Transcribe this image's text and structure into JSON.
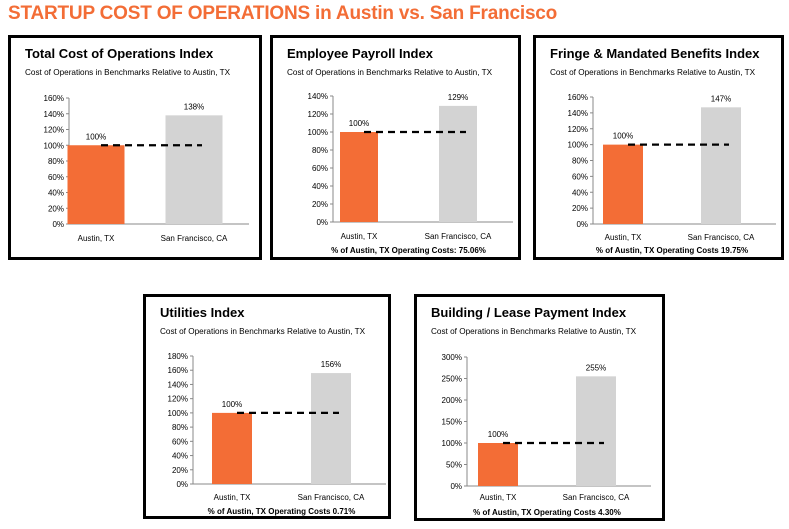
{
  "page": {
    "title": "STARTUP COST OF OPERATIONS in Austin vs. San Francisco"
  },
  "colors": {
    "title": "#f36d36",
    "austin_bar": "#f36d36",
    "sf_bar": "#d3d3d3",
    "reference_line": "#000000"
  },
  "chart_data": [
    {
      "type": "bar",
      "title": "Total Cost of Operations Index",
      "subtitle": "Cost of Operations in Benchmarks Relative to  Austin, TX",
      "categories": [
        "Austin, TX",
        "San Francisco, CA"
      ],
      "values": [
        100,
        138
      ],
      "value_labels": [
        "100%",
        "138%"
      ],
      "ylim": [
        0,
        160
      ],
      "yticks": [
        0,
        20,
        40,
        60,
        80,
        100,
        120,
        140,
        160
      ],
      "ytick_labels": [
        "0%",
        "20%",
        "40%",
        "60%",
        "80%",
        "100%",
        "120%",
        "140%",
        "160%"
      ],
      "reference_line": 100,
      "grid": false,
      "footnote": ""
    },
    {
      "type": "bar",
      "title": "Employee Payroll Index",
      "subtitle": "Cost of Operations in Benchmarks Relative to  Austin, TX",
      "categories": [
        "Austin, TX",
        "San Francisco, CA"
      ],
      "values": [
        100,
        129
      ],
      "value_labels": [
        "100%",
        "129%"
      ],
      "ylim": [
        0,
        140
      ],
      "yticks": [
        0,
        20,
        40,
        60,
        80,
        100,
        120,
        140
      ],
      "ytick_labels": [
        "0%",
        "20%",
        "40%",
        "60%",
        "80%",
        "100%",
        "120%",
        "140%"
      ],
      "reference_line": 100,
      "grid": false,
      "footnote": "% of Austin, TX Operating Costs: 75.06%"
    },
    {
      "type": "bar",
      "title": "Fringe & Mandated Benefits Index",
      "subtitle": "Cost of Operations in Benchmarks Relative to  Austin, TX",
      "categories": [
        "Austin, TX",
        "San Francisco, CA"
      ],
      "values": [
        100,
        147
      ],
      "value_labels": [
        "100%",
        "147%"
      ],
      "ylim": [
        0,
        160
      ],
      "yticks": [
        0,
        20,
        40,
        60,
        80,
        100,
        120,
        140,
        160
      ],
      "ytick_labels": [
        "0%",
        "20%",
        "40%",
        "60%",
        "80%",
        "100%",
        "120%",
        "140%",
        "160%"
      ],
      "reference_line": 100,
      "grid": false,
      "footnote": "% of Austin, TX Operating Costs 19.75%"
    },
    {
      "type": "bar",
      "title": "Utilities Index",
      "subtitle": "Cost of Operations in Benchmarks Relative to  Austin, TX",
      "categories": [
        "Austin, TX",
        "San Francisco, CA"
      ],
      "values": [
        100,
        156
      ],
      "value_labels": [
        "100%",
        "156%"
      ],
      "ylim": [
        0,
        180
      ],
      "yticks": [
        0,
        20,
        40,
        60,
        80,
        100,
        120,
        140,
        160,
        180
      ],
      "ytick_labels": [
        "0%",
        "20%",
        "40%",
        "60%",
        "80%",
        "100%",
        "120%",
        "140%",
        "160%",
        "180%"
      ],
      "reference_line": 100,
      "grid": false,
      "footnote": "% of Austin, TX Operating Costs 0.71%"
    },
    {
      "type": "bar",
      "title": "Building / Lease Payment Index",
      "subtitle": "Cost of Operations in Benchmarks Relative to  Austin, TX",
      "categories": [
        "Austin, TX",
        "San Francisco, CA"
      ],
      "values": [
        100,
        255
      ],
      "value_labels": [
        "100%",
        "255%"
      ],
      "ylim": [
        0,
        300
      ],
      "yticks": [
        0,
        50,
        100,
        150,
        200,
        250,
        300
      ],
      "ytick_labels": [
        "0%",
        "50%",
        "100%",
        "150%",
        "200%",
        "250%",
        "300%"
      ],
      "reference_line": 100,
      "grid": false,
      "footnote": "% of Austin, TX Operating Costs 4.30%"
    }
  ]
}
